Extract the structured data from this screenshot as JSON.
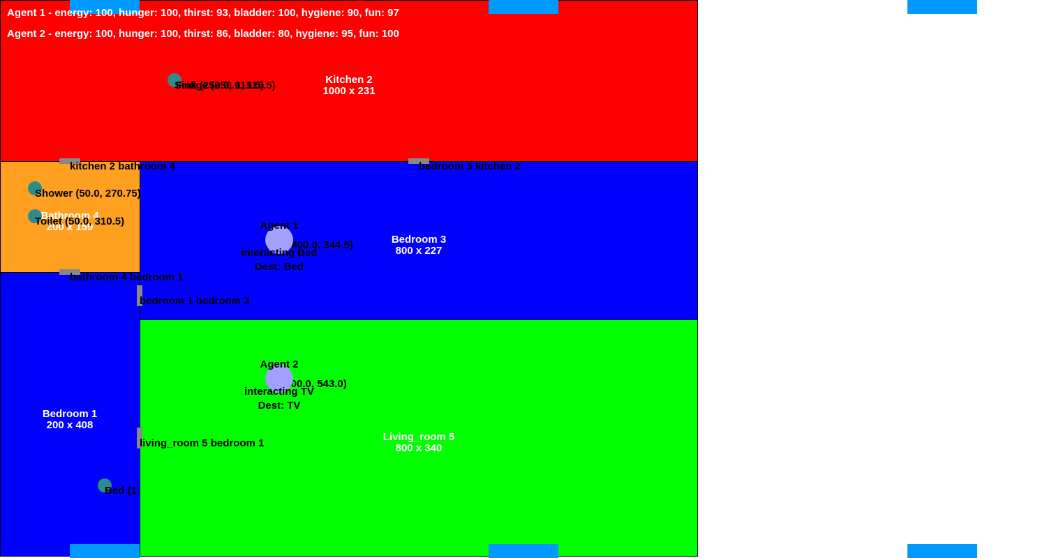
{
  "stats": {
    "agent1": "Agent 1 - energy: 100, hunger: 100, thirst: 93, bladder: 100, hygiene: 90, fun: 97",
    "agent2": "Agent 2 - energy: 100, hunger: 100, thirst: 86, bladder: 80, hygiene: 95, fun: 100"
  },
  "rooms": {
    "kitchen": {
      "name": "Kitchen 2",
      "size": "1000 x 231",
      "color": "#ff0000"
    },
    "bathroom": {
      "name": "Bathroom 4",
      "size": "200 x 159",
      "color": "#ffa020"
    },
    "bedroom3": {
      "name": "Bedroom 3",
      "size": "800 x 227",
      "color": "#0000ff"
    },
    "bedroom1": {
      "name": "Bedroom 1",
      "size": "200 x 408",
      "color": "#0000ff"
    },
    "living": {
      "name": "Living_room 5",
      "size": "800 x 340",
      "color": "#00ff00"
    }
  },
  "doors": {
    "kitchen_bathroom": "kitchen 2 bathroom 4",
    "bedroom3_kitchen": "bedroom 3 kitchen 2",
    "bathroom_bedroom1": "bathroom 4 bedroom 1",
    "bedroom1_bedroom3": "bedroom 1 bedroom 3",
    "living_bedroom1": "living_room 5 bedroom 1"
  },
  "objects": {
    "overlap_sink_fridge": "Sink (250.0, 115.5)",
    "overlap_fridge_sink": "Fridge (250.0, 115.5)",
    "shower": "Shower (50.0, 270.75)",
    "toilet": "Toilet (50.0, 310.5)",
    "bed_agent": "Bed (400.0, 344.5)",
    "tv_agent": "TV (400.0, 543.0)",
    "bed1": "Bed (1"
  },
  "agents": {
    "agent1": {
      "name": "Agent 1",
      "state": "interacting Bed",
      "dest": "Dest: Bed"
    },
    "agent2": {
      "name": "Agent 2",
      "state": "interacting TV",
      "dest": "Dest: TV"
    }
  },
  "colors": {
    "window": "#0099ff",
    "door": "#888888",
    "object": "#2e8b8b",
    "agent": "#a0a0ff"
  }
}
